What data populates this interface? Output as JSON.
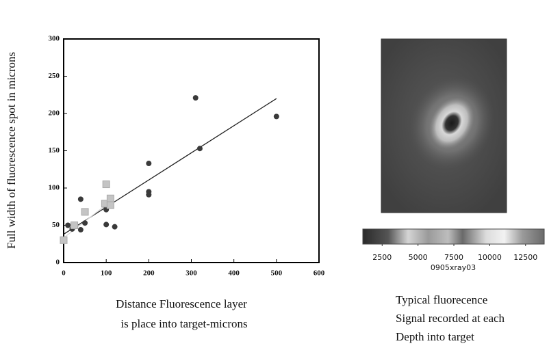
{
  "chart_data": [
    {
      "type": "scatter",
      "xlabel": [
        "Distance Fluorescence layer",
        "is place into target-microns"
      ],
      "ylabel": "Full width of fluorescence spot in microns",
      "xlim": [
        0,
        600
      ],
      "xticks": [
        0,
        100,
        200,
        300,
        400,
        500,
        600
      ],
      "ylim": [
        0,
        300
      ],
      "yticks": [
        0,
        50,
        100,
        150,
        200,
        250,
        300
      ],
      "series": [
        {
          "color": "#3a3a3a",
          "marker": "circle",
          "x": [
            10,
            20,
            40,
            40,
            50,
            100,
            100,
            100,
            120,
            200,
            200,
            200,
            310,
            320,
            500
          ],
          "values": [
            50,
            45,
            85,
            44,
            53,
            51,
            71,
            75,
            48,
            133,
            95,
            91,
            221,
            153,
            196
          ]
        },
        {
          "color": "#c4c4c4",
          "marker": "square",
          "x": [
            0,
            25,
            50,
            100,
            97,
            110,
            110
          ],
          "values": [
            30,
            50,
            68,
            105,
            79,
            86,
            77
          ]
        }
      ],
      "fits": [
        {
          "color": "#222222",
          "x": [
            0,
            500
          ],
          "values": [
            38,
            220
          ]
        },
        {
          "color": "#d8d8d8",
          "x": [
            0,
            110
          ],
          "values": [
            33,
            82
          ]
        }
      ]
    },
    {
      "type": "colorbar",
      "xlim": [
        1150,
        13800
      ],
      "xticks": [
        2500,
        5000,
        7500,
        10000,
        12500
      ],
      "label": "0905xray03",
      "caption": [
        "Typical fluorecence",
        "Signal recorded at each",
        "Depth into target"
      ]
    }
  ]
}
